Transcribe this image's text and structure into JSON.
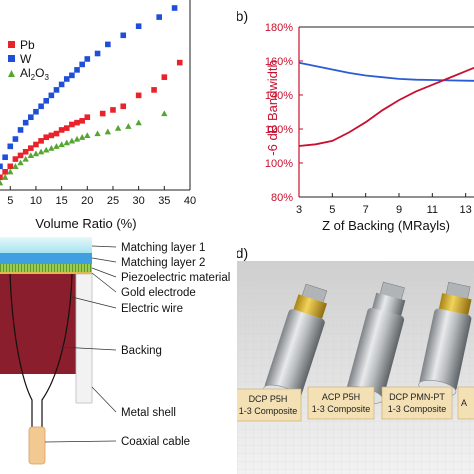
{
  "panels": {
    "a": {
      "chart_data": {
        "type": "scatter",
        "xlabel": "Volume Ratio (%)",
        "ylabel": "",
        "xlim": [
          3,
          40
        ],
        "ylim": [
          0,
          1
        ],
        "x_ticks": [
          "5",
          "10",
          "15",
          "20",
          "25",
          "30",
          "35",
          "40"
        ],
        "x_tick_values": [
          5,
          10,
          15,
          20,
          25,
          30,
          35,
          40
        ],
        "legend_position": "top-left",
        "series": [
          {
            "name": "Pb",
            "color": "#e8232a",
            "marker": "square",
            "x": [
              3,
              4,
              5,
              6,
              7,
              8,
              9,
              10,
              11,
              12,
              13,
              14,
              15,
              16,
              17,
              18,
              19,
              20,
              23,
              25,
              27,
              30,
              33,
              35,
              38
            ],
            "y": [
              0.07,
              0.1,
              0.13,
              0.17,
              0.19,
              0.21,
              0.23,
              0.25,
              0.27,
              0.29,
              0.3,
              0.31,
              0.33,
              0.34,
              0.36,
              0.37,
              0.38,
              0.4,
              0.42,
              0.44,
              0.46,
              0.52,
              0.55,
              0.62,
              0.7
            ]
          },
          {
            "name": "W",
            "color": "#1f4fd8",
            "marker": "square",
            "x": [
              3,
              4,
              5,
              6,
              7,
              8,
              9,
              10,
              11,
              12,
              13,
              14,
              15,
              16,
              17,
              18,
              19,
              20,
              22,
              24,
              27,
              30,
              34,
              37
            ],
            "y": [
              0.13,
              0.18,
              0.24,
              0.28,
              0.33,
              0.37,
              0.4,
              0.43,
              0.46,
              0.49,
              0.52,
              0.55,
              0.58,
              0.61,
              0.63,
              0.66,
              0.69,
              0.72,
              0.75,
              0.8,
              0.85,
              0.9,
              0.95,
              1.0
            ]
          },
          {
            "name": "Al2O3",
            "color": "#55a531",
            "marker": "triangle",
            "x": [
              3,
              4,
              5,
              6,
              7,
              8,
              9,
              10,
              11,
              12,
              13,
              14,
              15,
              16,
              17,
              18,
              19,
              20,
              22,
              24,
              26,
              28,
              30,
              35
            ],
            "y": [
              0.04,
              0.07,
              0.1,
              0.13,
              0.15,
              0.17,
              0.19,
              0.2,
              0.21,
              0.22,
              0.23,
              0.24,
              0.25,
              0.26,
              0.27,
              0.28,
              0.29,
              0.3,
              0.31,
              0.32,
              0.34,
              0.35,
              0.37,
              0.42
            ]
          }
        ]
      }
    },
    "b": {
      "panel_label": "(b)",
      "chart_data": {
        "type": "line",
        "xlabel": "Z of Backing (MRayls)",
        "ylabel": "-6 dB Bandwidth",
        "xlim": [
          3,
          15
        ],
        "ylim": [
          80,
          180
        ],
        "x_ticks": [
          "3",
          "5",
          "7",
          "9",
          "11",
          "13"
        ],
        "x_tick_values": [
          3,
          5,
          7,
          9,
          11,
          13
        ],
        "y_ticks": [
          "80%",
          "100%",
          "120%",
          "140%",
          "160%",
          "180%"
        ],
        "y_tick_values": [
          80,
          100,
          120,
          140,
          160,
          180
        ],
        "series": [
          {
            "color": "#2a5bd7",
            "x": [
              3,
              4,
              5,
              6,
              7,
              8,
              9,
              10,
              11,
              12,
              13,
              14,
              15
            ],
            "y": [
              159,
              157,
              155,
              153,
              151.5,
              150.5,
              149.5,
              149,
              148.8,
              148.6,
              148.4,
              148.3,
              148.2
            ]
          },
          {
            "color": "#c8102e",
            "x": [
              3,
              4,
              5,
              6,
              7,
              8,
              9,
              10,
              11,
              12,
              13,
              14,
              15
            ],
            "y": [
              110,
              111,
              113,
              118,
              124,
              131,
              137,
              142,
              146,
              150,
              154,
              158,
              160
            ]
          }
        ]
      }
    },
    "c": {
      "labels": [
        "Matching layer 1",
        "Matching layer 2",
        "Piezoelectric material",
        "Gold electrode",
        "Electric wire",
        "Backing",
        "Metal shell",
        "Coaxial cable"
      ]
    },
    "d": {
      "panel_label": "(d)",
      "probe_labels": [
        {
          "line1": "DCP P5H",
          "line2": "1-3 Composite"
        },
        {
          "line1": "ACP P5H",
          "line2": "1-3 Composite"
        },
        {
          "line1": "DCP PMN-PT",
          "line2": "1-3 Composite"
        },
        {
          "line1": "A",
          "line2": ""
        }
      ]
    }
  },
  "colors": {
    "red": "#c8102e",
    "blue": "#2a5bd7",
    "green": "#55a531",
    "matching1": "#b9ecf5",
    "matching2": "#3f9fe0",
    "piezo": "#8fc640",
    "backing": "#8b1e2d"
  }
}
